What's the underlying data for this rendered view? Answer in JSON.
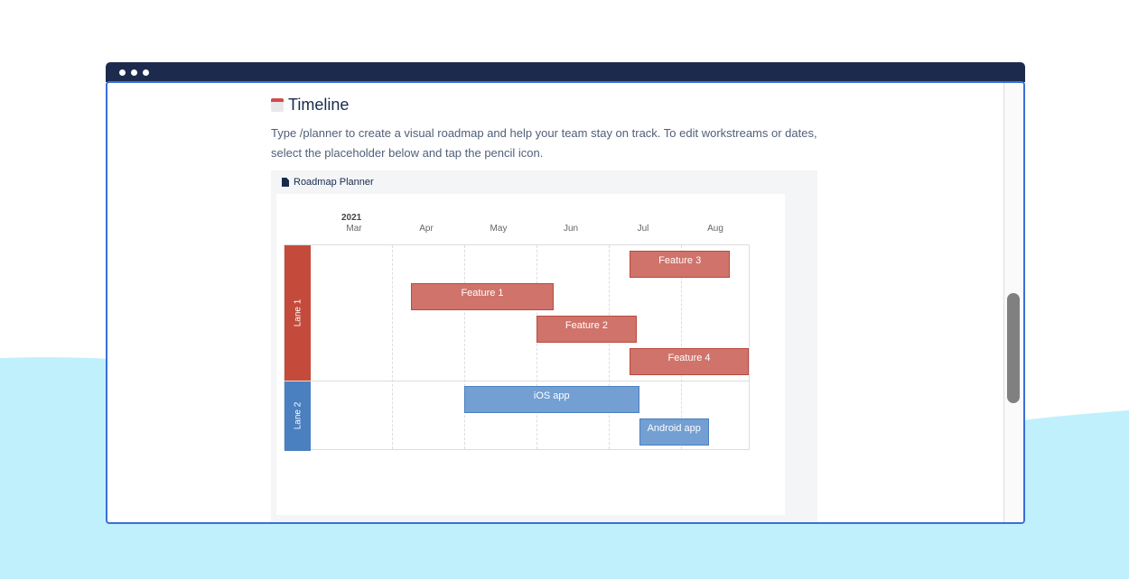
{
  "page": {
    "title": "Timeline",
    "description": "Type /planner to create a visual roadmap and help your team stay on track. To edit workstreams or dates, select the placeholder below and tap the pencil icon."
  },
  "planner": {
    "title": "Roadmap Planner",
    "year": "2021",
    "months": [
      "Mar",
      "Apr",
      "May",
      "Jun",
      "Jul",
      "Aug"
    ],
    "lanes": [
      {
        "label": "Lane 1",
        "color": "#c44b3c",
        "bar_color": "#d0736a",
        "bars": [
          {
            "label": "Feature 3",
            "start": "2021-07-10",
            "end": "2021-08-22"
          },
          {
            "label": "Feature 1",
            "start": "2021-04-09",
            "end": "2021-06-08"
          },
          {
            "label": "Feature 2",
            "start": "2021-06-01",
            "end": "2021-07-13"
          },
          {
            "label": "Feature 4",
            "start": "2021-07-10",
            "end": "2021-08-30"
          }
        ]
      },
      {
        "label": "Lane 2",
        "color": "#4a7fc0",
        "bar_color": "#739fd2",
        "bars": [
          {
            "label": "iOS app",
            "start": "2021-05-01",
            "end": "2021-07-14"
          },
          {
            "label": "Android app",
            "start": "2021-07-14",
            "end": "2021-08-13"
          }
        ]
      }
    ]
  },
  "colors": {
    "titlebar": "#1c2b4d",
    "window_border": "#3a6fd8",
    "background_wave": "#c0f0fc"
  }
}
